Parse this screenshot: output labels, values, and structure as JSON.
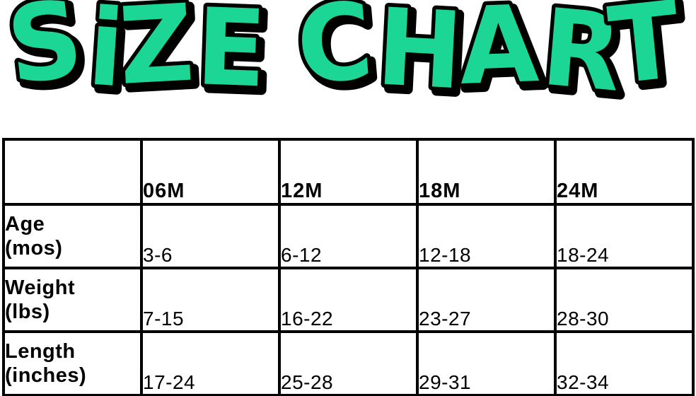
{
  "title": {
    "text": "SiZE CHART",
    "fill_color": "#1BD695",
    "outline_color": "#000000"
  },
  "chart_data": {
    "type": "table",
    "title": "SiZE CHART",
    "columns": [
      "06M",
      "12M",
      "18M",
      "24M"
    ],
    "rows": [
      {
        "label_line1": "Age",
        "label_line2": "(mos)",
        "values": [
          "3-6",
          "6-12",
          "12-18",
          "18-24"
        ]
      },
      {
        "label_line1": "Weight",
        "label_line2": "(lbs)",
        "values": [
          "7-15",
          "16-22",
          "23-27",
          "28-30"
        ]
      },
      {
        "label_line1": "Length",
        "label_line2": "(inches)",
        "values": [
          "17-24",
          "25-28",
          "29-31",
          "32-34"
        ]
      }
    ],
    "layout": {
      "grid": true,
      "border_color": "#000000",
      "background": "#FFFFFF",
      "corner_cell_empty": true
    }
  }
}
